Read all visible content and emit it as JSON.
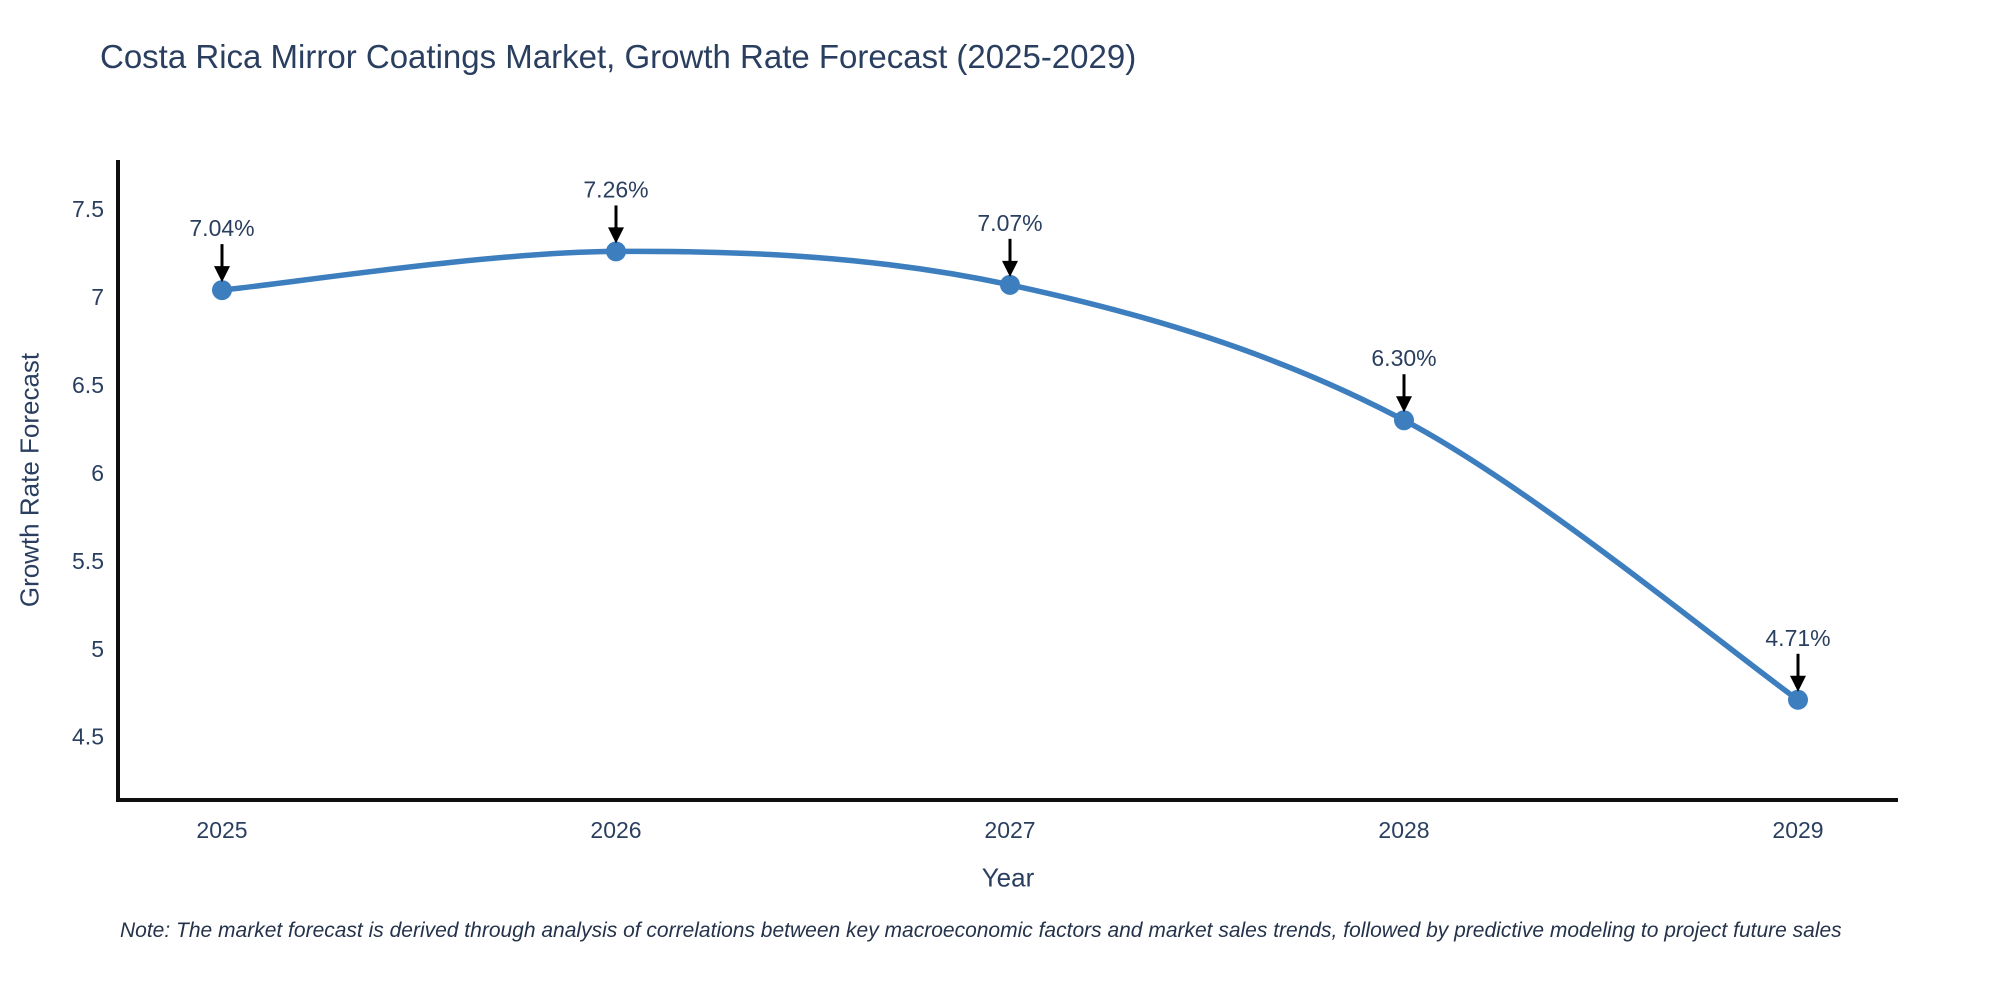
{
  "chart_data": {
    "type": "line",
    "title": "Costa Rica Mirror Coatings Market, Growth Rate Forecast (2025-2029)",
    "xlabel": "Year",
    "ylabel": "Growth Rate Forecast",
    "x": [
      "2025",
      "2026",
      "2027",
      "2028",
      "2029"
    ],
    "values": [
      7.04,
      7.26,
      7.07,
      6.3,
      4.71
    ],
    "point_labels": [
      "7.04%",
      "7.26%",
      "7.07%",
      "6.30%",
      "4.71%"
    ],
    "yticks": [
      "7.5",
      "7",
      "6.5",
      "6",
      "5.5",
      "5",
      "4.5"
    ],
    "ylim": [
      4.14,
      7.78
    ],
    "line_shape": "spline",
    "grid": false,
    "legend": false,
    "markers": true,
    "annotation_arrows": true,
    "note": "Note: The market forecast is derived through analysis of correlations between key macroeconomic factors and market sales trends, followed by predictive modeling to project future sales",
    "colors": {
      "line": "#3d7ebf",
      "marker": "#3d7ebf",
      "text": "#2a3f5f",
      "axis": "#0f0f0f",
      "arrow": "#000000",
      "background": "#ffffff"
    }
  }
}
